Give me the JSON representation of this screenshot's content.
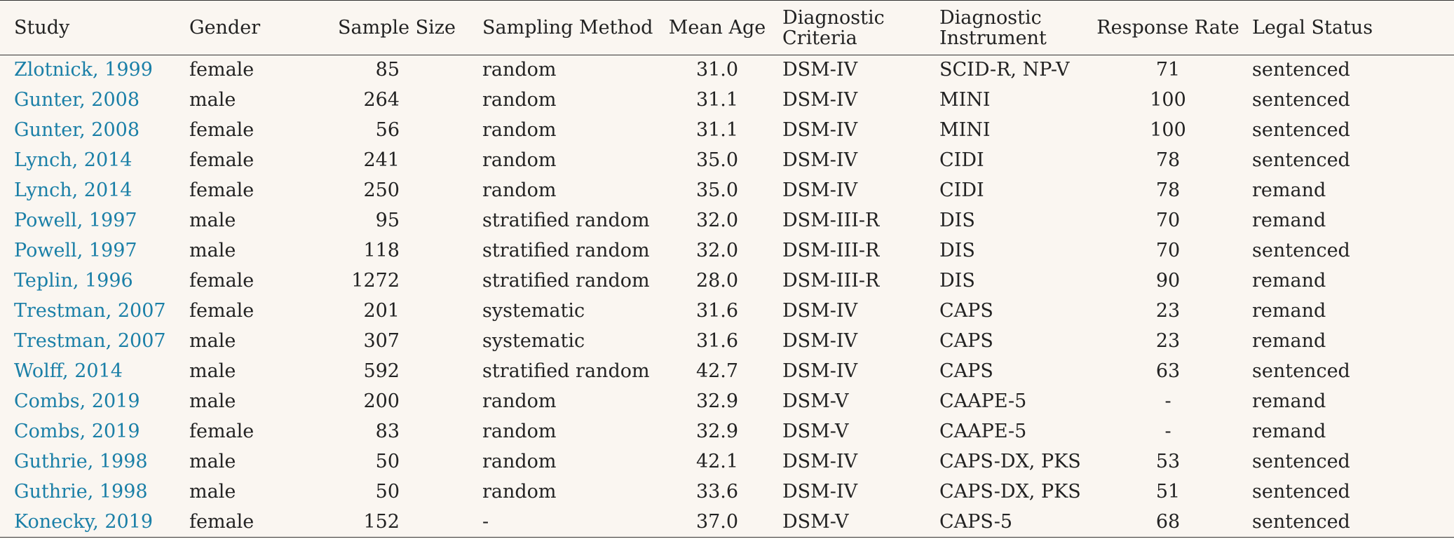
{
  "headers": {
    "study": "Study",
    "gender": "Gender",
    "sample_size": "Sample Size",
    "sampling_method": "Sampling Method",
    "mean_age": "Mean Age",
    "diagnostic_criteria_line1": "Diagnostic",
    "diagnostic_criteria_line2": "Criteria",
    "diagnostic_instrument_line1": "Diagnostic",
    "diagnostic_instrument_line2": "Instrument",
    "response_rate": "Response Rate",
    "legal_status": "Legal Status"
  },
  "colors": {
    "link": "#1a7fa7",
    "background": "#faf6f1",
    "text": "#222222"
  },
  "rows": [
    {
      "study": "Zlotnick, 1999",
      "gender": "female",
      "sample_size": "85",
      "sampling_method": "random",
      "mean_age": "31.0",
      "criteria": "DSM-IV",
      "instrument": "SCID-R, NP-V",
      "response_rate": "71",
      "legal_status": "sentenced"
    },
    {
      "study": "Gunter, 2008",
      "gender": "male",
      "sample_size": "264",
      "sampling_method": "random",
      "mean_age": "31.1",
      "criteria": "DSM-IV",
      "instrument": "MINI",
      "response_rate": "100",
      "legal_status": "sentenced"
    },
    {
      "study": "Gunter, 2008",
      "gender": "female",
      "sample_size": "56",
      "sampling_method": "random",
      "mean_age": "31.1",
      "criteria": "DSM-IV",
      "instrument": "MINI",
      "response_rate": "100",
      "legal_status": "sentenced"
    },
    {
      "study": "Lynch, 2014",
      "gender": "female",
      "sample_size": "241",
      "sampling_method": "random",
      "mean_age": "35.0",
      "criteria": "DSM-IV",
      "instrument": "CIDI",
      "response_rate": "78",
      "legal_status": "sentenced"
    },
    {
      "study": "Lynch, 2014",
      "gender": "female",
      "sample_size": "250",
      "sampling_method": "random",
      "mean_age": "35.0",
      "criteria": "DSM-IV",
      "instrument": "CIDI",
      "response_rate": "78",
      "legal_status": "remand"
    },
    {
      "study": "Powell, 1997",
      "gender": "male",
      "sample_size": "95",
      "sampling_method": "stratified random",
      "mean_age": "32.0",
      "criteria": "DSM-III-R",
      "instrument": "DIS",
      "response_rate": "70",
      "legal_status": "remand"
    },
    {
      "study": "Powell, 1997",
      "gender": "male",
      "sample_size": "118",
      "sampling_method": "stratified random",
      "mean_age": "32.0",
      "criteria": "DSM-III-R",
      "instrument": "DIS",
      "response_rate": "70",
      "legal_status": "sentenced"
    },
    {
      "study": "Teplin, 1996",
      "gender": "female",
      "sample_size": "1272",
      "sampling_method": "stratified random",
      "mean_age": "28.0",
      "criteria": "DSM-III-R",
      "instrument": "DIS",
      "response_rate": "90",
      "legal_status": "remand"
    },
    {
      "study": "Trestman, 2007",
      "gender": "female",
      "sample_size": "201",
      "sampling_method": "systematic",
      "mean_age": "31.6",
      "criteria": "DSM-IV",
      "instrument": "CAPS",
      "response_rate": "23",
      "legal_status": "remand"
    },
    {
      "study": "Trestman, 2007",
      "gender": "male",
      "sample_size": "307",
      "sampling_method": "systematic",
      "mean_age": "31.6",
      "criteria": "DSM-IV",
      "instrument": "CAPS",
      "response_rate": "23",
      "legal_status": "remand"
    },
    {
      "study": "Wolff, 2014",
      "gender": "male",
      "sample_size": "592",
      "sampling_method": "stratified random",
      "mean_age": "42.7",
      "criteria": "DSM-IV",
      "instrument": "CAPS",
      "response_rate": "63",
      "legal_status": "sentenced"
    },
    {
      "study": "Combs, 2019",
      "gender": "male",
      "sample_size": "200",
      "sampling_method": "random",
      "mean_age": "32.9",
      "criteria": "DSM-V",
      "instrument": "CAAPE-5",
      "response_rate": "-",
      "legal_status": "remand"
    },
    {
      "study": "Combs, 2019",
      "gender": "female",
      "sample_size": "83",
      "sampling_method": "random",
      "mean_age": "32.9",
      "criteria": "DSM-V",
      "instrument": "CAAPE-5",
      "response_rate": "-",
      "legal_status": "remand"
    },
    {
      "study": "Guthrie, 1998",
      "gender": "male",
      "sample_size": "50",
      "sampling_method": "random",
      "mean_age": "42.1",
      "criteria": "DSM-IV",
      "instrument": "CAPS-DX, PKS",
      "response_rate": "53",
      "legal_status": "sentenced"
    },
    {
      "study": "Guthrie, 1998",
      "gender": "male",
      "sample_size": "50",
      "sampling_method": "random",
      "mean_age": "33.6",
      "criteria": "DSM-IV",
      "instrument": "CAPS-DX, PKS",
      "response_rate": "51",
      "legal_status": "sentenced"
    },
    {
      "study": "Konecky, 2019",
      "gender": "female",
      "sample_size": "152",
      "sampling_method": "-",
      "mean_age": "37.0",
      "criteria": "DSM-V",
      "instrument": "CAPS-5",
      "response_rate": "68",
      "legal_status": "sentenced"
    }
  ]
}
